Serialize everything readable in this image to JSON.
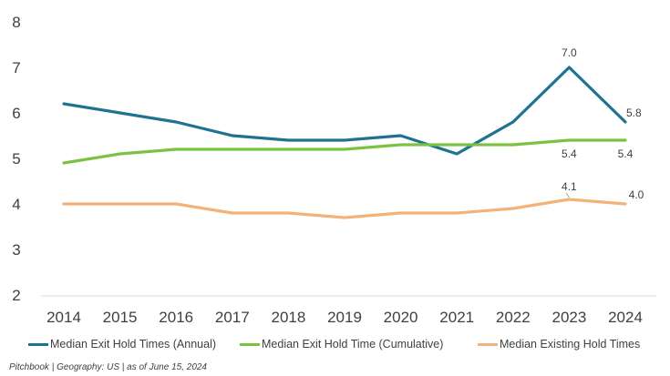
{
  "chart_data": {
    "type": "line",
    "categories": [
      "2014",
      "2015",
      "2016",
      "2017",
      "2018",
      "2019",
      "2020",
      "2021",
      "2022",
      "2023",
      "2024"
    ],
    "ylim": [
      2,
      8
    ],
    "yticks": [
      "2",
      "3",
      "4",
      "5",
      "6",
      "7",
      "8"
    ],
    "grid": false,
    "legend_position": "bottom",
    "series": [
      {
        "name": "Median  Exit Hold Times (Annual)",
        "color": "#1f7391",
        "values": [
          6.2,
          6.0,
          5.8,
          5.5,
          5.4,
          5.4,
          5.5,
          5.1,
          5.8,
          7.0,
          5.8
        ]
      },
      {
        "name": "Median  Exit Hold Time (Cumulative)",
        "color": "#7cc242",
        "values": [
          4.9,
          5.1,
          5.2,
          5.2,
          5.2,
          5.2,
          5.3,
          5.3,
          5.3,
          5.4,
          5.4
        ]
      },
      {
        "name": "Median   Existing Hold Times",
        "color": "#f2b27a",
        "values": [
          4.0,
          4.0,
          4.0,
          3.8,
          3.8,
          3.7,
          3.8,
          3.8,
          3.9,
          4.1,
          4.0
        ]
      }
    ],
    "data_labels": [
      {
        "series": 0,
        "index": 9,
        "text": "7.0"
      },
      {
        "series": 0,
        "index": 10,
        "text": "5.8"
      },
      {
        "series": 1,
        "index": 9,
        "text": "5.4"
      },
      {
        "series": 1,
        "index": 10,
        "text": "5.4"
      },
      {
        "series": 2,
        "index": 9,
        "text": "4.1"
      },
      {
        "series": 2,
        "index": 10,
        "text": "4.0"
      }
    ]
  },
  "source_note": "Pitchbook | Geography: US | as of June 15, 2024"
}
